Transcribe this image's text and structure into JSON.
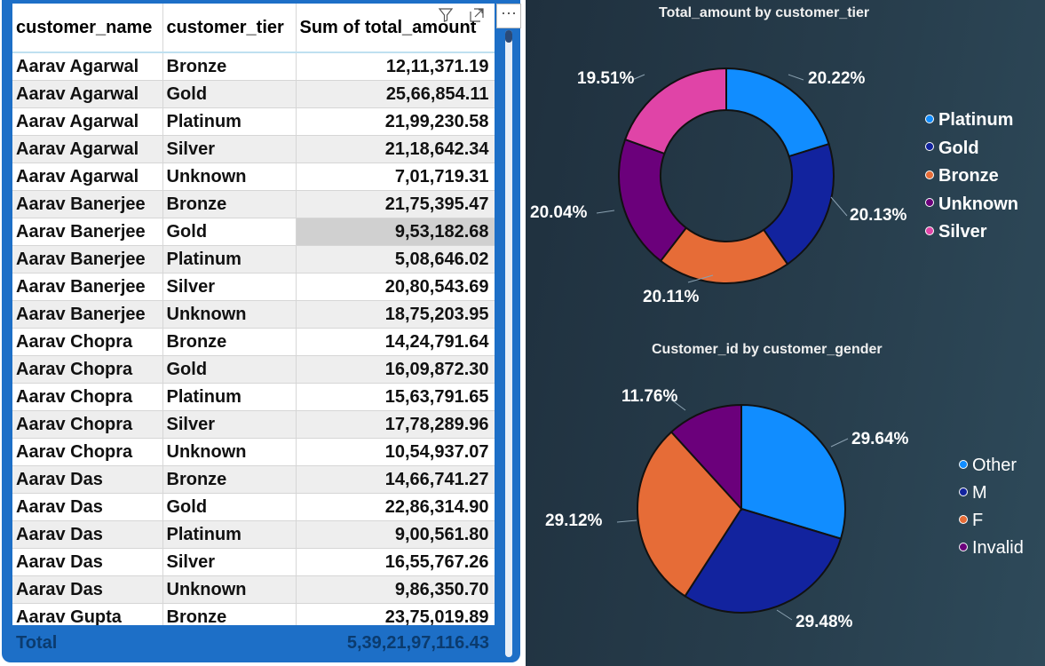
{
  "table": {
    "columns": [
      "customer_name",
      "customer_tier",
      "Sum of total_amount"
    ],
    "rows": [
      [
        "Aarav Agarwal",
        "Bronze",
        "12,11,371.19"
      ],
      [
        "Aarav Agarwal",
        "Gold",
        "25,66,854.11"
      ],
      [
        "Aarav Agarwal",
        "Platinum",
        "21,99,230.58"
      ],
      [
        "Aarav Agarwal",
        "Silver",
        "21,18,642.34"
      ],
      [
        "Aarav Agarwal",
        "Unknown",
        "7,01,719.31"
      ],
      [
        "Aarav Banerjee",
        "Bronze",
        "21,75,395.47"
      ],
      [
        "Aarav Banerjee",
        "Gold",
        "9,53,182.68"
      ],
      [
        "Aarav Banerjee",
        "Platinum",
        "5,08,646.02"
      ],
      [
        "Aarav Banerjee",
        "Silver",
        "20,80,543.69"
      ],
      [
        "Aarav Banerjee",
        "Unknown",
        "18,75,203.95"
      ],
      [
        "Aarav Chopra",
        "Bronze",
        "14,24,791.64"
      ],
      [
        "Aarav Chopra",
        "Gold",
        "16,09,872.30"
      ],
      [
        "Aarav Chopra",
        "Platinum",
        "15,63,791.65"
      ],
      [
        "Aarav Chopra",
        "Silver",
        "17,78,289.96"
      ],
      [
        "Aarav Chopra",
        "Unknown",
        "10,54,937.07"
      ],
      [
        "Aarav Das",
        "Bronze",
        "14,66,741.27"
      ],
      [
        "Aarav Das",
        "Gold",
        "22,86,314.90"
      ],
      [
        "Aarav Das",
        "Platinum",
        "9,00,561.80"
      ],
      [
        "Aarav Das",
        "Silver",
        "16,55,767.26"
      ],
      [
        "Aarav Das",
        "Unknown",
        "9,86,350.70"
      ],
      [
        "Aarav Gupta",
        "Bronze",
        "23,75,019.89"
      ]
    ],
    "highlighted_row": 6,
    "total_label": "Total",
    "total_value": "5,39,21,97,116.43",
    "header_icons": [
      "filter-icon",
      "focus-mode-icon",
      "more-options-icon"
    ],
    "more_options_glyph": "···"
  },
  "chart_data": [
    {
      "type": "donut",
      "title": "Total_amount by customer_tier",
      "categories": [
        "Platinum",
        "Gold",
        "Bronze",
        "Unknown",
        "Silver"
      ],
      "values": [
        20.22,
        20.13,
        20.11,
        20.04,
        19.51
      ],
      "labels": [
        "20.22%",
        "20.13%",
        "20.11%",
        "20.04%",
        "19.51%"
      ],
      "colors": [
        "#118dff",
        "#12239e",
        "#e66c37",
        "#6b007b",
        "#e044a7"
      ],
      "legend_position": "right"
    },
    {
      "type": "pie",
      "title": "Customer_id by customer_gender",
      "categories": [
        "Other",
        "M",
        "F",
        "Invalid"
      ],
      "values": [
        29.64,
        29.48,
        29.12,
        11.76
      ],
      "labels": [
        "29.64%",
        "29.48%",
        "29.12%",
        "11.76%"
      ],
      "colors": [
        "#118dff",
        "#12239e",
        "#e66c37",
        "#6b007b"
      ],
      "legend_position": "right"
    }
  ]
}
